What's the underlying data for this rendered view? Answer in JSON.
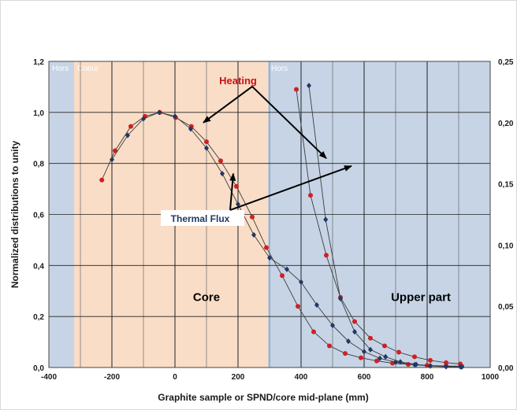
{
  "chart_data": {
    "type": "line",
    "title": "",
    "xlabel": "Graphite sample or SPND/core mid-plane (mm)",
    "ylabel": "Normalized distributions to unity",
    "xlim": [
      -400,
      1000
    ],
    "ylim": [
      0,
      1.2
    ],
    "y2lim": [
      0,
      0.25
    ],
    "grid": true,
    "x_ticks": [
      "-400",
      "-200",
      "0",
      "200",
      "400",
      "600",
      "800",
      "1000"
    ],
    "y_ticks": [
      "0,0",
      "0,2",
      "0,4",
      "0,6",
      "0,8",
      "1,0",
      "1,2"
    ],
    "y2_ticks": [
      "0,00",
      "0,05",
      "0,10",
      "0,15",
      "0,20",
      "0,25"
    ],
    "zones": [
      {
        "name": "Hors",
        "from": -400,
        "to": -320,
        "color": "#c6d4e6"
      },
      {
        "name": "Coeur",
        "from": -320,
        "to": 295,
        "color": "#f9ddc7"
      },
      {
        "name": "Hors",
        "from": 295,
        "to": 1000,
        "color": "#c6d4e6"
      }
    ],
    "region_labels": [
      {
        "text": "Core",
        "x": 100,
        "y": 0.26
      },
      {
        "text": "Upper part",
        "x": 780,
        "y": 0.26
      }
    ],
    "annotations": [
      {
        "text": "Heating",
        "x": 220,
        "y": 1.12,
        "color": "#d01010",
        "targets": [
          [
            90,
            0.96
          ],
          [
            480,
            0.82
          ]
        ]
      },
      {
        "text": "Thermal Flux",
        "x": 100,
        "y": 0.58,
        "color": "#1f3864",
        "targets": [
          [
            185,
            0.76
          ],
          [
            560,
            0.79
          ]
        ]
      }
    ],
    "series": [
      {
        "color": "#d02020",
        "marker": "circle",
        "points": [
          [
            -232,
            0.735
          ],
          [
            -190,
            0.85
          ],
          [
            -140,
            0.945
          ],
          [
            -95,
            0.985
          ],
          [
            -48,
            1.0
          ],
          [
            2,
            0.98
          ],
          [
            52,
            0.945
          ],
          [
            100,
            0.885
          ],
          [
            145,
            0.81
          ],
          [
            195,
            0.71
          ],
          [
            245,
            0.59
          ],
          [
            290,
            0.47
          ],
          [
            340,
            0.36
          ],
          [
            390,
            0.24
          ],
          [
            440,
            0.14
          ],
          [
            490,
            0.085
          ],
          [
            540,
            0.055
          ],
          [
            590,
            0.038
          ],
          [
            640,
            0.026
          ],
          [
            690,
            0.017
          ],
          [
            740,
            0.012
          ],
          [
            800,
            0.008
          ],
          [
            860,
            0.006
          ],
          [
            910,
            0.005
          ]
        ]
      },
      {
        "color": "#1f3864",
        "marker": "diamond",
        "points": [
          [
            -200,
            0.815
          ],
          [
            -150,
            0.91
          ],
          [
            -100,
            0.975
          ],
          [
            -50,
            1.0
          ],
          [
            0,
            0.985
          ],
          [
            50,
            0.935
          ],
          [
            100,
            0.86
          ],
          [
            150,
            0.76
          ],
          [
            200,
            0.64
          ],
          [
            250,
            0.52
          ],
          [
            300,
            0.43
          ],
          [
            355,
            0.385
          ],
          [
            400,
            0.335
          ],
          [
            450,
            0.245
          ],
          [
            500,
            0.165
          ],
          [
            550,
            0.103
          ],
          [
            600,
            0.062
          ],
          [
            650,
            0.036
          ],
          [
            700,
            0.021
          ],
          [
            760,
            0.011
          ],
          [
            810,
            0.006
          ],
          [
            860,
            0.003
          ],
          [
            910,
            0.002
          ]
        ]
      },
      {
        "color": "#d02020",
        "marker": "circle",
        "points": [
          [
            385,
            1.09
          ],
          [
            430,
            0.675
          ],
          [
            480,
            0.44
          ],
          [
            525,
            0.275
          ],
          [
            570,
            0.18
          ],
          [
            620,
            0.115
          ],
          [
            665,
            0.085
          ],
          [
            710,
            0.06
          ],
          [
            760,
            0.042
          ],
          [
            810,
            0.028
          ],
          [
            860,
            0.019
          ],
          [
            905,
            0.014
          ]
        ]
      },
      {
        "color": "#1f3864",
        "marker": "diamond",
        "points": [
          [
            425,
            1.105
          ],
          [
            478,
            0.58
          ],
          [
            525,
            0.27
          ],
          [
            570,
            0.14
          ],
          [
            620,
            0.07
          ],
          [
            668,
            0.042
          ],
          [
            715,
            0.022
          ],
          [
            765,
            0.012
          ],
          [
            810,
            0.007
          ],
          [
            860,
            0.004
          ],
          [
            905,
            0.003
          ]
        ]
      }
    ]
  }
}
